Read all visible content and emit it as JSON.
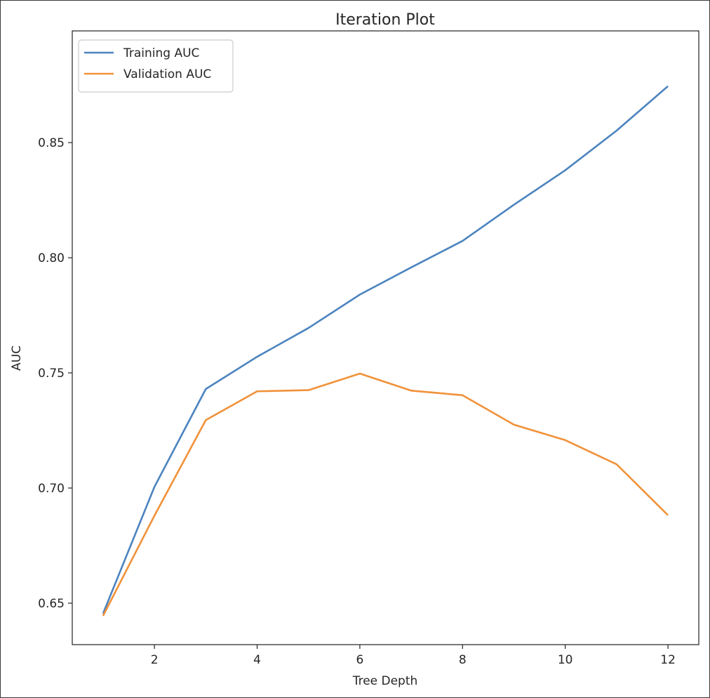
{
  "chart_data": {
    "type": "line",
    "title": "Iteration Plot",
    "xlabel": "Tree Depth",
    "ylabel": "AUC",
    "x": [
      1,
      2,
      3,
      4,
      5,
      6,
      7,
      8,
      9,
      10,
      11,
      12
    ],
    "xlim": [
      0.4,
      12.6
    ],
    "ylim": [
      0.632,
      0.8985
    ],
    "xticks": [
      2,
      4,
      6,
      8,
      10,
      12
    ],
    "xtick_labels": [
      "2",
      "4",
      "6",
      "8",
      "10",
      "12"
    ],
    "yticks": [
      0.65,
      0.7,
      0.75,
      0.8,
      0.85
    ],
    "ytick_labels": [
      "0.65",
      "0.70",
      "0.75",
      "0.80",
      "0.85"
    ],
    "grid": false,
    "legend_position": "top-left",
    "series": [
      {
        "name": "Training AUC",
        "color": "#4c84bf",
        "values": [
          0.6455,
          0.7005,
          0.743,
          0.757,
          0.7695,
          0.784,
          0.7958,
          0.8073,
          0.823,
          0.838,
          0.8552,
          0.8745
        ]
      },
      {
        "name": "Validation AUC",
        "color": "#f0923a",
        "values": [
          0.6445,
          0.688,
          0.7295,
          0.742,
          0.7425,
          0.7497,
          0.7423,
          0.7403,
          0.7275,
          0.7208,
          0.7103,
          0.6882
        ]
      }
    ]
  }
}
